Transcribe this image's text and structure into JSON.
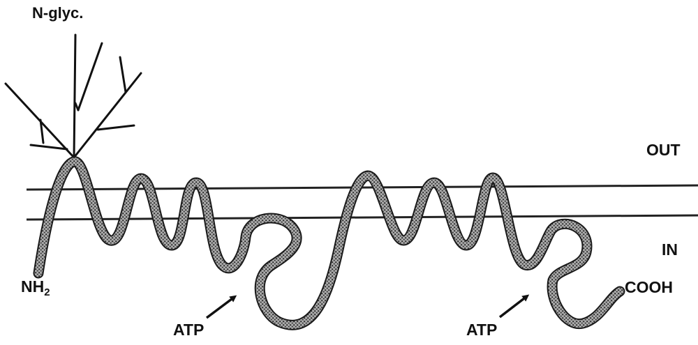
{
  "labels": {
    "glycosylation": "N-glyc.",
    "outside": "OUT",
    "inside": "IN",
    "n_terminus_main": "NH",
    "n_terminus_sub": "2",
    "c_terminus": "COOH",
    "atp_site_1": "ATP",
    "atp_site_2": "ATP"
  },
  "colors": {
    "ink": "#111111",
    "chain_fill": "#8a8a8a",
    "chain_outline": "#1a1a1a",
    "membrane": "#222222",
    "background": "#ffffff"
  },
  "icons": {
    "glycan_tree": "glycan-tree-icon",
    "atp_arrow": "arrow-icon"
  }
}
